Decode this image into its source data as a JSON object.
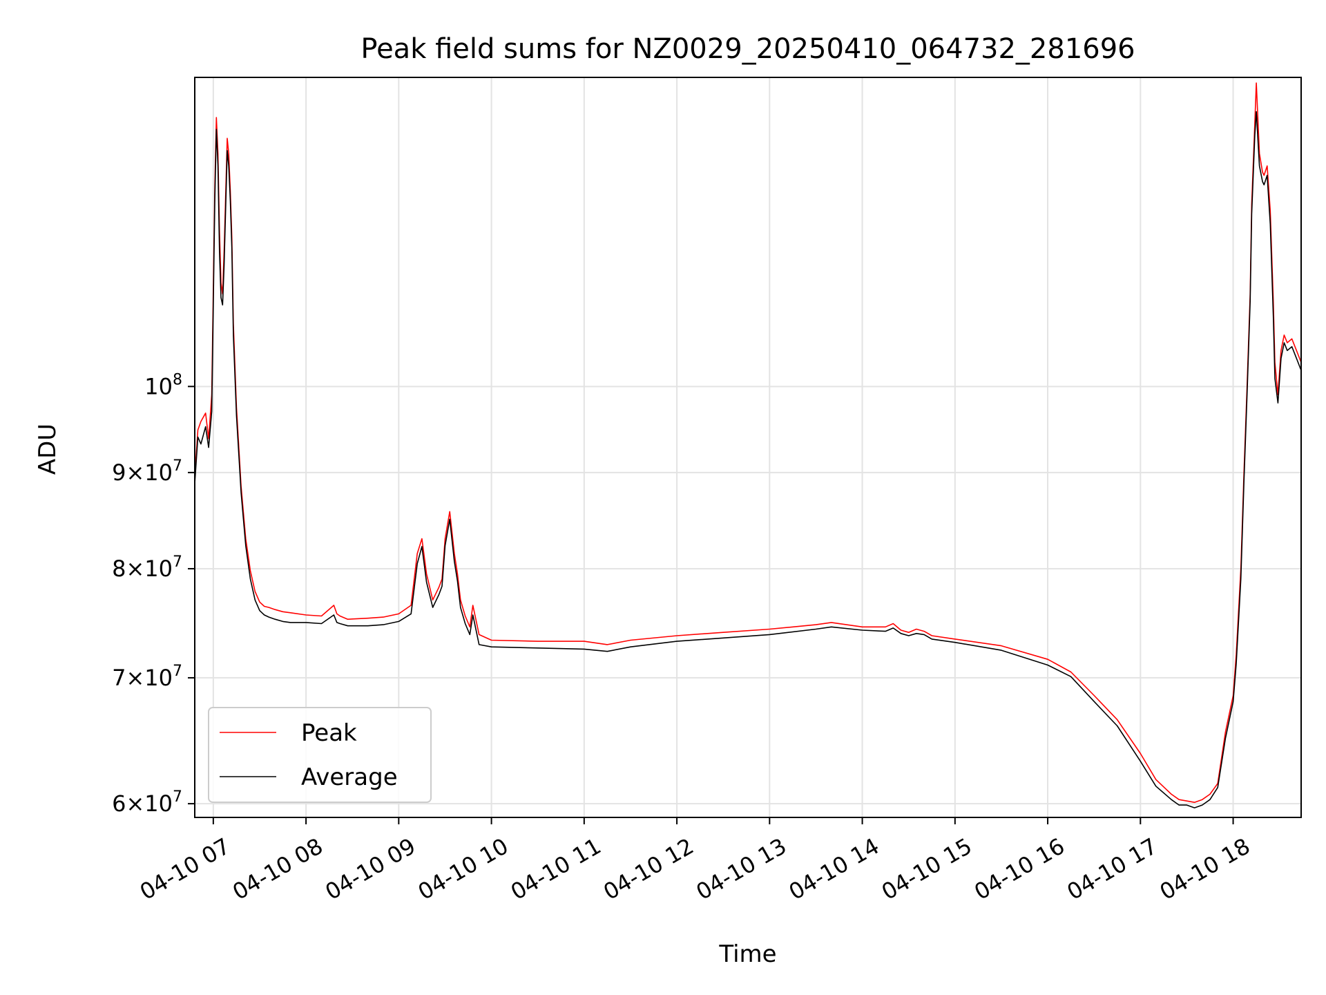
{
  "chart_data": {
    "type": "line",
    "title": "Peak field sums for NZ0029_20250410_064732_281696",
    "xlabel": "Time",
    "ylabel": "ADU",
    "yscale": "log",
    "xlim": [
      "04-10 06:48",
      "04-10 18:44"
    ],
    "ylim": [
      59000000,
      146000000
    ],
    "grid": true,
    "legend_position": "lower-left",
    "x_ticks": [
      {
        "t": "04-10 07",
        "label": "04-10 07"
      },
      {
        "t": "04-10 08",
        "label": "04-10 08"
      },
      {
        "t": "04-10 09",
        "label": "04-10 09"
      },
      {
        "t": "04-10 10",
        "label": "04-10 10"
      },
      {
        "t": "04-10 11",
        "label": "04-10 11"
      },
      {
        "t": "04-10 12",
        "label": "04-10 12"
      },
      {
        "t": "04-10 13",
        "label": "04-10 13"
      },
      {
        "t": "04-10 14",
        "label": "04-10 14"
      },
      {
        "t": "04-10 15",
        "label": "04-10 15"
      },
      {
        "t": "04-10 16",
        "label": "04-10 16"
      },
      {
        "t": "04-10 17",
        "label": "04-10 17"
      },
      {
        "t": "04-10 18",
        "label": "04-10 18"
      }
    ],
    "y_ticks": [
      {
        "value": 60000000,
        "base": "6×10",
        "exp": "7"
      },
      {
        "value": 70000000,
        "base": "7×10",
        "exp": "7"
      },
      {
        "value": 80000000,
        "base": "8×10",
        "exp": "7"
      },
      {
        "value": 90000000,
        "base": "9×10",
        "exp": "7"
      },
      {
        "value": 100000000,
        "base": "10",
        "exp": "8"
      }
    ],
    "series": [
      {
        "name": "Peak",
        "color": "#ff0000",
        "x": [
          "04-10 06:48",
          "04-10 06:50",
          "04-10 06:52",
          "04-10 06:55",
          "04-10 06:57",
          "04-10 06:59",
          "04-10 07:01",
          "04-10 07:02",
          "04-10 07:03",
          "04-10 07:04",
          "04-10 07:05",
          "04-10 07:06",
          "04-10 07:07",
          "04-10 07:09",
          "04-10 07:10",
          "04-10 07:11",
          "04-10 07:12",
          "04-10 07:13",
          "04-10 07:15",
          "04-10 07:18",
          "04-10 07:21",
          "04-10 07:24",
          "04-10 07:27",
          "04-10 07:30",
          "04-10 07:33",
          "04-10 07:36",
          "04-10 07:40",
          "04-10 07:45",
          "04-10 07:50",
          "04-10 08:00",
          "04-10 08:10",
          "04-10 08:18",
          "04-10 08:20",
          "04-10 08:22",
          "04-10 08:27",
          "04-10 08:40",
          "04-10 08:50",
          "04-10 09:00",
          "04-10 09:08",
          "04-10 09:12",
          "04-10 09:15",
          "04-10 09:18",
          "04-10 09:22",
          "04-10 09:26",
          "04-10 09:28",
          "04-10 09:30",
          "04-10 09:33",
          "04-10 09:36",
          "04-10 09:38",
          "04-10 09:40",
          "04-10 09:43",
          "04-10 09:46",
          "04-10 09:48",
          "04-10 09:52",
          "04-10 10:00",
          "04-10 10:30",
          "04-10 11:00",
          "04-10 11:15",
          "04-10 11:30",
          "04-10 12:00",
          "04-10 12:30",
          "04-10 13:00",
          "04-10 13:30",
          "04-10 13:40",
          "04-10 14:00",
          "04-10 14:15",
          "04-10 14:20",
          "04-10 14:25",
          "04-10 14:30",
          "04-10 14:35",
          "04-10 14:40",
          "04-10 14:45",
          "04-10 15:00",
          "04-10 15:30",
          "04-10 16:00",
          "04-10 16:15",
          "04-10 16:30",
          "04-10 16:45",
          "04-10 17:00",
          "04-10 17:10",
          "04-10 17:20",
          "04-10 17:25",
          "04-10 17:30",
          "04-10 17:35",
          "04-10 17:40",
          "04-10 17:45",
          "04-10 17:50",
          "04-10 17:55",
          "04-10 18:00",
          "04-10 18:02",
          "04-10 18:05",
          "04-10 18:07",
          "04-10 18:09",
          "04-10 18:11",
          "04-10 18:12",
          "04-10 18:14",
          "04-10 18:15",
          "04-10 18:17",
          "04-10 18:19",
          "04-10 18:20",
          "04-10 18:22",
          "04-10 18:24",
          "04-10 18:26",
          "04-10 18:27",
          "04-10 18:29",
          "04-10 18:31",
          "04-10 18:33",
          "04-10 18:35",
          "04-10 18:38",
          "04-10 18:41",
          "04-10 18:44"
        ],
        "y": [
          89500000,
          94800000,
          95800000,
          96800000,
          93800000,
          99000000,
          128000000,
          139000000,
          133000000,
          121000000,
          113500000,
          112000000,
          118000000,
          135500000,
          133000000,
          127000000,
          120000000,
          108000000,
          97500000,
          88500000,
          83000000,
          79800000,
          77800000,
          76800000,
          76400000,
          76300000,
          76100000,
          75900000,
          75800000,
          75600000,
          75500000,
          76500000,
          75700000,
          75500000,
          75200000,
          75300000,
          75400000,
          75700000,
          76500000,
          81500000,
          83000000,
          79500000,
          77000000,
          78200000,
          79000000,
          83000000,
          85800000,
          81500000,
          79500000,
          77000000,
          75500000,
          74500000,
          76500000,
          73800000,
          73300000,
          73200000,
          73200000,
          72900000,
          73300000,
          73700000,
          74000000,
          74300000,
          74700000,
          74900000,
          74500000,
          74500000,
          74800000,
          74200000,
          74000000,
          74300000,
          74100000,
          73700000,
          73400000,
          72800000,
          71600000,
          70500000,
          68500000,
          66500000,
          63800000,
          61800000,
          60700000,
          60300000,
          60200000,
          60100000,
          60300000,
          60700000,
          61500000,
          65500000,
          68500000,
          72000000,
          80000000,
          90000000,
          100000000,
          112000000,
          125000000,
          138000000,
          145000000,
          133000000,
          130000000,
          129500000,
          131000000,
          124000000,
          111000000,
          103000000,
          99000000,
          104500000,
          106500000,
          105500000,
          106000000,
          104500000,
          103000000
        ]
      },
      {
        "name": "Average",
        "color": "#000000",
        "x": [
          "04-10 06:48",
          "04-10 06:50",
          "04-10 06:52",
          "04-10 06:55",
          "04-10 06:57",
          "04-10 06:59",
          "04-10 07:01",
          "04-10 07:02",
          "04-10 07:03",
          "04-10 07:04",
          "04-10 07:05",
          "04-10 07:06",
          "04-10 07:07",
          "04-10 07:09",
          "04-10 07:10",
          "04-10 07:11",
          "04-10 07:12",
          "04-10 07:13",
          "04-10 07:15",
          "04-10 07:18",
          "04-10 07:21",
          "04-10 07:24",
          "04-10 07:27",
          "04-10 07:30",
          "04-10 07:33",
          "04-10 07:36",
          "04-10 07:40",
          "04-10 07:45",
          "04-10 07:50",
          "04-10 08:00",
          "04-10 08:10",
          "04-10 08:18",
          "04-10 08:20",
          "04-10 08:22",
          "04-10 08:27",
          "04-10 08:40",
          "04-10 08:50",
          "04-10 09:00",
          "04-10 09:08",
          "04-10 09:12",
          "04-10 09:15",
          "04-10 09:18",
          "04-10 09:22",
          "04-10 09:26",
          "04-10 09:28",
          "04-10 09:30",
          "04-10 09:33",
          "04-10 09:36",
          "04-10 09:38",
          "04-10 09:40",
          "04-10 09:43",
          "04-10 09:46",
          "04-10 09:48",
          "04-10 09:52",
          "04-10 10:00",
          "04-10 10:30",
          "04-10 11:00",
          "04-10 11:15",
          "04-10 11:30",
          "04-10 12:00",
          "04-10 12:30",
          "04-10 13:00",
          "04-10 13:30",
          "04-10 13:40",
          "04-10 14:00",
          "04-10 14:15",
          "04-10 14:20",
          "04-10 14:25",
          "04-10 14:30",
          "04-10 14:35",
          "04-10 14:40",
          "04-10 14:45",
          "04-10 15:00",
          "04-10 15:30",
          "04-10 16:00",
          "04-10 16:15",
          "04-10 16:30",
          "04-10 16:45",
          "04-10 17:00",
          "04-10 17:10",
          "04-10 17:20",
          "04-10 17:25",
          "04-10 17:30",
          "04-10 17:35",
          "04-10 17:40",
          "04-10 17:45",
          "04-10 17:50",
          "04-10 17:55",
          "04-10 18:00",
          "04-10 18:02",
          "04-10 18:05",
          "04-10 18:07",
          "04-10 18:09",
          "04-10 18:11",
          "04-10 18:12",
          "04-10 18:14",
          "04-10 18:15",
          "04-10 18:17",
          "04-10 18:19",
          "04-10 18:20",
          "04-10 18:22",
          "04-10 18:24",
          "04-10 18:26",
          "04-10 18:27",
          "04-10 18:29",
          "04-10 18:31",
          "04-10 18:33",
          "04-10 18:35",
          "04-10 18:38",
          "04-10 18:41",
          "04-10 18:44"
        ],
        "y": [
          88800000,
          94000000,
          93200000,
          95200000,
          92800000,
          97000000,
          126000000,
          137000000,
          131000000,
          118000000,
          111500000,
          110500000,
          116000000,
          133500000,
          131000000,
          125500000,
          118500000,
          106500000,
          96500000,
          87800000,
          82300000,
          79000000,
          77000000,
          76000000,
          75600000,
          75400000,
          75200000,
          75000000,
          74900000,
          74900000,
          74800000,
          75600000,
          74900000,
          74800000,
          74600000,
          74600000,
          74700000,
          75000000,
          75700000,
          80500000,
          82200000,
          78700000,
          76300000,
          77500000,
          78300000,
          82300000,
          85000000,
          80700000,
          78800000,
          76300000,
          74800000,
          73800000,
          75600000,
          72900000,
          72700000,
          72600000,
          72500000,
          72300000,
          72700000,
          73200000,
          73500000,
          73800000,
          74300000,
          74500000,
          74200000,
          74100000,
          74400000,
          73900000,
          73700000,
          73900000,
          73800000,
          73400000,
          73100000,
          72400000,
          71100000,
          70100000,
          68000000,
          66000000,
          63200000,
          61300000,
          60300000,
          59900000,
          59900000,
          59700000,
          59900000,
          60300000,
          61200000,
          65000000,
          68000000,
          71200000,
          79000000,
          89000000,
          99000000,
          111000000,
          123500000,
          136000000,
          140000000,
          131000000,
          128500000,
          128000000,
          129500000,
          122000000,
          109000000,
          101000000,
          98000000,
          103500000,
          105500000,
          104500000,
          105000000,
          103500000,
          102000000
        ]
      }
    ]
  }
}
